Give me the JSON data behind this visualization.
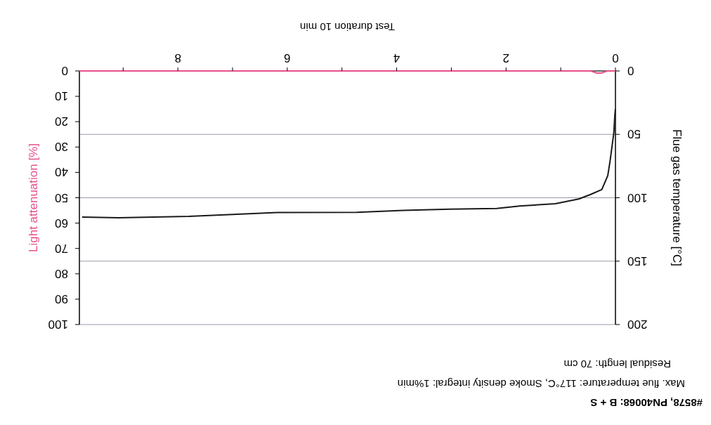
{
  "chart_data": {
    "type": "line",
    "title": "#8578, PN40068: B + S",
    "annotations": [
      "Max. flue temperature: 117°C, Smoke density integral: 1%min",
      "Residual length: 70 cm"
    ],
    "xlabel": "Test duration 10 min",
    "ylabel": "Flue gas temperature [°C]",
    "y2label": "Light attenuation [%]",
    "xlim": [
      9.8,
      0
    ],
    "xticks": [
      0,
      {
        "value": 1,
        "label": null
      },
      2,
      {
        "value": 3,
        "label": null
      },
      4,
      {
        "value": 5,
        "label": null
      },
      6,
      {
        "value": 7,
        "label": null
      },
      8,
      {
        "value": 9,
        "label": null
      }
    ],
    "ylim": [
      200,
      0
    ],
    "yticks": [
      0,
      50,
      100,
      150,
      200
    ],
    "y2lim": [
      100,
      0
    ],
    "y2ticks": [
      0,
      10,
      20,
      30,
      40,
      50,
      60,
      70,
      80,
      90,
      100
    ],
    "grid": "y",
    "series": [
      {
        "color": "#1a1a1a",
        "x": [
          0,
          0.01,
          0.03,
          0.1,
          0.14,
          0.25,
          0.46,
          0.67,
          1.1,
          1.75,
          2.17,
          3.03,
          3.88,
          4.73,
          6.18,
          7.8,
          9.08,
          9.75
        ],
        "values": [
          30,
          34,
          49,
          71.5,
          82.5,
          93.6,
          97.5,
          101,
          104.7,
          106.5,
          108.5,
          109,
          110,
          111.5,
          111.7,
          114.7,
          115.8,
          115.3
        ]
      },
      {
        "color": "#e8508a",
        "axis": "y2",
        "x": [
          0,
          0.15,
          0.25,
          0.35,
          0.45,
          9.8
        ],
        "values": [
          0,
          0,
          0.8,
          0.8,
          0,
          0
        ]
      }
    ]
  }
}
